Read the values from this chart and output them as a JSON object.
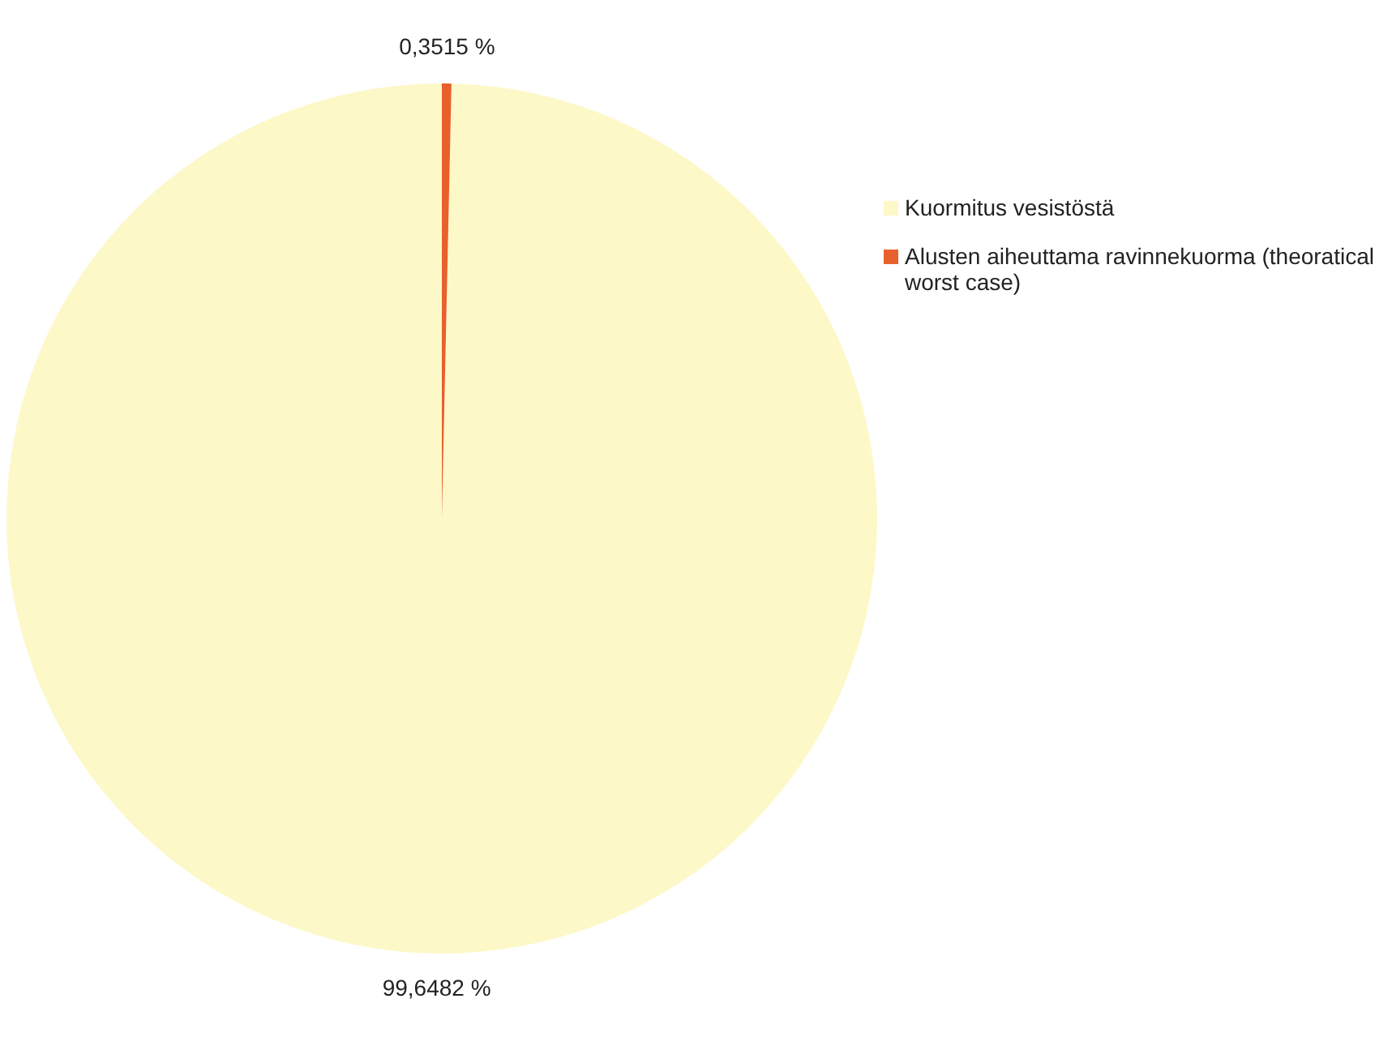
{
  "chart_data": {
    "type": "pie",
    "categories": [
      "Kuormitus vesistöstä",
      "Alusten aiheuttama ravinnekuorma (theoratical worst case)"
    ],
    "values": [
      99.6482,
      0.3515
    ],
    "colors": [
      "#fdf8c8",
      "#e8602c"
    ],
    "value_labels": [
      "99,6482 %",
      "0,3515 %"
    ],
    "legend": "right"
  }
}
